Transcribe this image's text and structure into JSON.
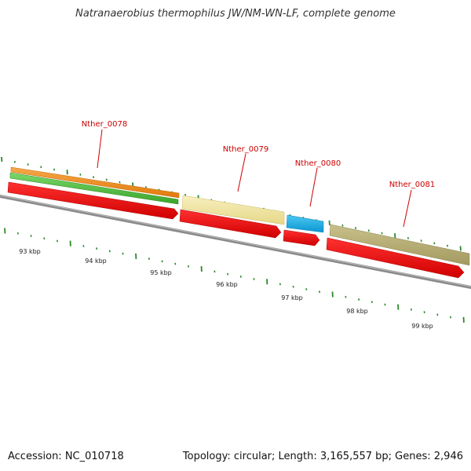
{
  "title": "Natranaerobius thermophilus JW/NM-WN-LF, complete genome",
  "footer": {
    "accession": "Accession: NC_010718",
    "topology": "Topology: circular; Length: 3,165,557 bp; Genes: 2,946"
  },
  "genes": [
    {
      "id": "Nther_0078"
    },
    {
      "id": "Nther_0079"
    },
    {
      "id": "Nther_0080"
    },
    {
      "id": "Nther_0081"
    }
  ],
  "axis": {
    "ticks": [
      "93 kbp",
      "94 kbp",
      "95 kbp",
      "96 kbp",
      "97 kbp",
      "98 kbp",
      "99 kbp"
    ]
  },
  "colors": {
    "title": "#333333",
    "backbone": "#888888",
    "cds_arrow": "#ee0000",
    "feature_orange": "#f28a1a",
    "feature_green": "#4cc23a",
    "feature_light_yellow": "#f2e6a3",
    "feature_blue": "#1aaee8",
    "feature_olive": "#b6ad74",
    "tick_green": "#2a8a2a",
    "label_red": "#cc0000"
  }
}
